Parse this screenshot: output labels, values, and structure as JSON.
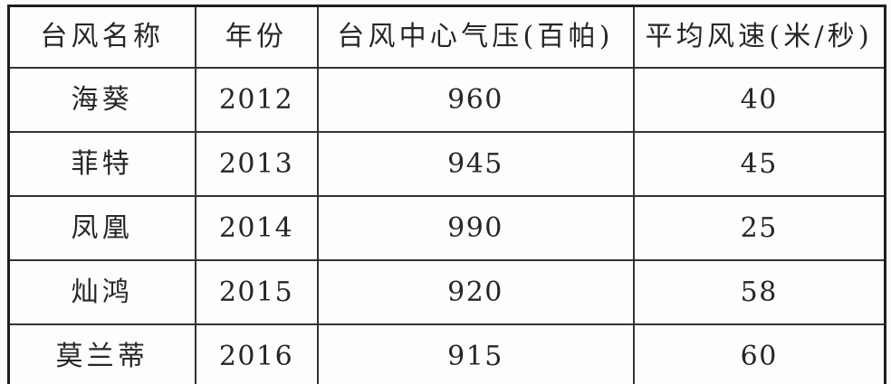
{
  "table": {
    "columns": [
      {
        "key": "name",
        "label": "台风名称"
      },
      {
        "key": "year",
        "label": "年份"
      },
      {
        "key": "pressure",
        "label": "台风中心气压(百帕)"
      },
      {
        "key": "wind",
        "label": "平均风速(米/秒)"
      }
    ],
    "rows": [
      {
        "name": "海葵",
        "year": "2012",
        "pressure": "960",
        "wind": "40"
      },
      {
        "name": "菲特",
        "year": "2013",
        "pressure": "945",
        "wind": "45"
      },
      {
        "name": "凤凰",
        "year": "2014",
        "pressure": "990",
        "wind": "25"
      },
      {
        "name": "灿鸿",
        "year": "2015",
        "pressure": "920",
        "wind": "58"
      },
      {
        "name": "莫兰蒂",
        "year": "2016",
        "pressure": "915",
        "wind": "60"
      }
    ]
  },
  "colors": {
    "paper": "#fcfcfa",
    "cell_background": "#fdfdfc",
    "outer_border": "#1e1e1e",
    "inner_border": "#333333",
    "text": "#262626"
  },
  "chart_data": {
    "type": "table",
    "title": "",
    "categories": [
      "海葵",
      "菲特",
      "凤凰",
      "灿鸿",
      "莫兰蒂"
    ],
    "series": [
      {
        "name": "年份",
        "values": [
          2012,
          2013,
          2014,
          2015,
          2016
        ]
      },
      {
        "name": "台风中心气压(百帕)",
        "values": [
          960,
          945,
          990,
          920,
          915
        ]
      },
      {
        "name": "平均风速(米/秒)",
        "values": [
          40,
          45,
          25,
          58,
          60
        ]
      }
    ]
  }
}
